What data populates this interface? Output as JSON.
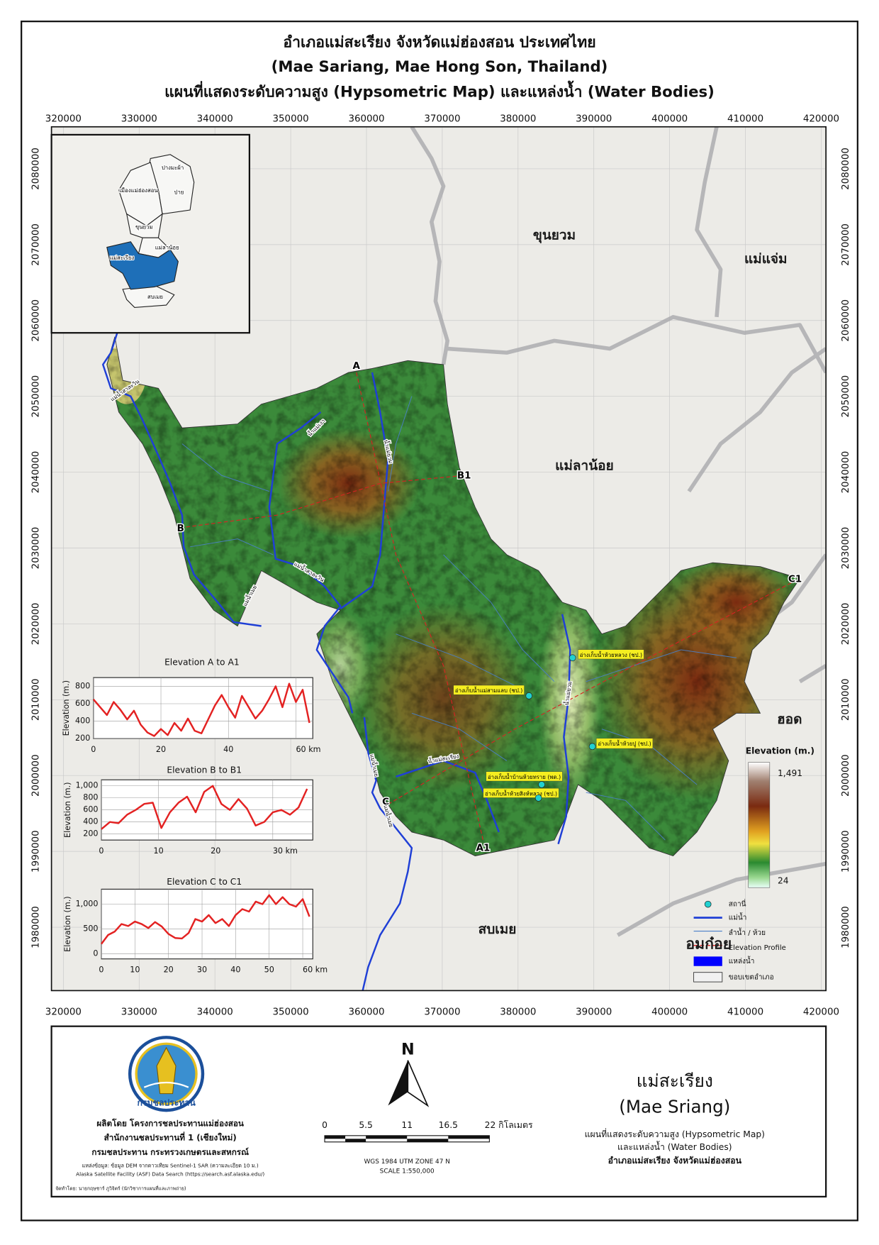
{
  "title": {
    "line1": "อำเภอแม่สะเรียง จังหวัดแม่ฮ่องสอน ประเทศไทย",
    "line2": "(Mae Sariang, Mae Hong Son, Thailand)",
    "line3": "แผนที่แสดงระดับความสูง (Hypsometric Map) และแหล่งน้ำ (Water Bodies)"
  },
  "map": {
    "eastings": [
      320000,
      330000,
      340000,
      350000,
      360000,
      370000,
      380000,
      390000,
      400000,
      410000,
      420000
    ],
    "northings": [
      1980000,
      1990000,
      2000000,
      2010000,
      2020000,
      2030000,
      2040000,
      2050000,
      2060000,
      2070000,
      2080000
    ],
    "districts": [
      "ขุนยวม",
      "แม่แจ่ม",
      "แม่ลาน้อย",
      "ฮอด",
      "สบเมย",
      "อมก๋อย"
    ],
    "profile_points": [
      "A",
      "A1",
      "B",
      "B1",
      "C",
      "C1"
    ],
    "river_labels": [
      "แม่น้ำสาละวิน",
      "น้ำแม่เงา",
      "น้ำแม่ยวม",
      "แม่น้ำสาละวิน",
      "แม่น้ำเมย",
      "น้ำแม่ยวม",
      "แม่น้ำเมย",
      "น้ำแม่สะเรียง",
      "แม่น้ำเมย"
    ],
    "reservoirs": [
      "อ่างเก็บน้ำห้วยหลวง (ชป.)",
      "อ่างเก็บน้ำแม่สามแลบ (ชป.)",
      "อ่างเก็บน้ำห้วยปู (ชป.)",
      "อ่างเก็บน้ำบ้านห้วยทราย (พด.)",
      "อ่างเก็บน้ำห้วยสิงห์หลวง (ชป.)"
    ],
    "inset": {
      "districts": [
        "ปางมะผ้า",
        "เมืองแม่ฮ่องสอน",
        "ปาย",
        "ขุนยวม",
        "แม่ลาน้อย",
        "แม่สะเรียง",
        "สบเมย"
      ]
    }
  },
  "chart_data": [
    {
      "type": "line",
      "title": "Elevation A to A1",
      "y_label": "Elevation (m.)",
      "color": "#e32222",
      "x": [
        0,
        2,
        4,
        6,
        8,
        10,
        12,
        14,
        16,
        18,
        20,
        22,
        24,
        26,
        28,
        30,
        32,
        34,
        36,
        38,
        40,
        42,
        44,
        46,
        48,
        50,
        52,
        54,
        56,
        58,
        60,
        62,
        64
      ],
      "values": [
        650,
        560,
        470,
        620,
        530,
        420,
        520,
        360,
        270,
        230,
        310,
        240,
        380,
        290,
        430,
        290,
        260,
        420,
        580,
        700,
        560,
        440,
        690,
        560,
        430,
        520,
        650,
        800,
        560,
        830,
        620,
        760,
        380
      ],
      "xlim": [
        0,
        65
      ],
      "ylim": [
        200,
        900
      ],
      "xticks": [
        0,
        20,
        40,
        {
          "value": 60,
          "label": "60 km"
        }
      ],
      "yticks": [
        200,
        400,
        600,
        800
      ],
      "grid": true
    },
    {
      "type": "line",
      "title": "Elevation B to B1",
      "y_label": "Elevation (m.)",
      "color": "#e32222",
      "x": [
        0,
        1.5,
        3,
        4.5,
        6,
        7.5,
        9,
        10.5,
        12,
        13.5,
        15,
        16.5,
        18,
        19.5,
        21,
        22.5,
        24,
        25.5,
        27,
        28.5,
        30,
        31.5,
        33,
        34.5,
        36
      ],
      "values": [
        280,
        400,
        380,
        520,
        600,
        700,
        720,
        300,
        560,
        720,
        820,
        560,
        900,
        1000,
        700,
        600,
        780,
        620,
        340,
        400,
        560,
        600,
        520,
        640,
        950
      ],
      "xlim": [
        0,
        37
      ],
      "ylim": [
        100,
        1100
      ],
      "xticks": [
        0,
        10,
        20,
        {
          "value": 30,
          "label": "30 km"
        }
      ],
      "yticks": [
        200,
        400,
        600,
        800,
        {
          "value": 1000,
          "label": "1,000"
        }
      ],
      "grid": true
    },
    {
      "type": "line",
      "title": "Elevation C to C1",
      "y_label": "Elevation (m.)",
      "color": "#e32222",
      "x": [
        0,
        2,
        4,
        6,
        8,
        10,
        12,
        14,
        16,
        18,
        20,
        22,
        24,
        26,
        28,
        30,
        32,
        34,
        36,
        38,
        40,
        42,
        44,
        46,
        48,
        50,
        52,
        54,
        56,
        58,
        60,
        62
      ],
      "values": [
        200,
        380,
        450,
        600,
        560,
        650,
        600,
        520,
        640,
        550,
        400,
        320,
        310,
        420,
        700,
        650,
        780,
        620,
        700,
        560,
        780,
        900,
        850,
        1050,
        1000,
        1180,
        1000,
        1140,
        1000,
        950,
        1100,
        750
      ],
      "xlim": [
        0,
        63
      ],
      "ylim": [
        -100,
        1300
      ],
      "xticks": [
        0,
        10,
        20,
        30,
        40,
        50,
        {
          "value": 60,
          "label": "60 km"
        }
      ],
      "yticks": [
        0,
        500,
        {
          "value": 1000,
          "label": "1,000"
        }
      ],
      "grid": true
    }
  ],
  "legend": {
    "elevation_title": "Elevation (m.)",
    "elevation_max": {
      "value": 1491,
      "label": "1,491"
    },
    "elevation_min": 24,
    "items": [
      "สถานี่",
      "แม่น้ำ",
      "ลำน้ำ / ห้วย",
      "Elevation Profile",
      "แหล่งน้ำ",
      "ขอบเขตอำเภอ"
    ]
  },
  "footer": {
    "logo_text": "กรมชลประทาน",
    "producer": [
      "ผลิตโดย โครงการชลประทานแม่ฮ่องสอน",
      "สำนักงานชลประทานที่ 1 (เชียงใหม่)",
      "กรมชลประทาน กระทรวงเกษตรและสหกรณ์"
    ],
    "source": [
      "แหล่งข้อมูล: ข้อมูล DEM จากดาวเทียม Sentinel-1 SAR (ความละเอียด 10 ม.)",
      "Alaska Satellite Facility (ASF) Data Search (https://search.asf.alaska.edu/)"
    ],
    "author": "จัดทำโดย: นายกฤษชาร์ ภูวิจิตร์ (นักวิชาการแผนที่และภาพถ่าย)",
    "north": "N",
    "scale_labels": [
      "0",
      "5.5",
      "11",
      "16.5",
      "22 กิโลเมตร"
    ],
    "projection": "WGS 1984 UTM ZONE 47 N",
    "scale": "SCALE 1:550,000",
    "district_name": "แม่สะเรียง",
    "district_name_en": "(Mae Sriang)",
    "description": [
      "แผนที่แสดงระดับความสูง (Hypsometric Map)",
      "และแหล่งน้ำ (Water Bodies)",
      "อำเภอแม่สะเรียง จังหวัดแม่ฮ่องสอน"
    ]
  }
}
